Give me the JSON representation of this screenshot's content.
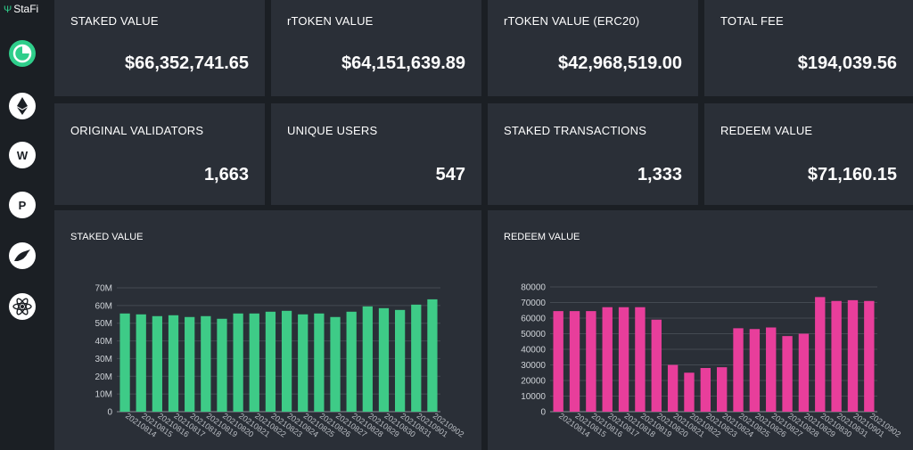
{
  "app": {
    "brand": "StaFi"
  },
  "sidebar": {
    "items": [
      {
        "icon": "pie-chart-icon",
        "active": true
      },
      {
        "icon": "ethereum-icon",
        "active": false
      },
      {
        "icon": "web3-icon",
        "active": false
      },
      {
        "icon": "polkadot-icon",
        "active": false
      },
      {
        "icon": "kusama-icon",
        "active": false
      },
      {
        "icon": "cosmos-icon",
        "active": false
      }
    ]
  },
  "stats": [
    {
      "label": "STAKED VALUE",
      "value": "$66,352,741.65"
    },
    {
      "label": "rTOKEN VALUE",
      "value": "$64,151,639.89"
    },
    {
      "label": "rTOKEN VALUE (ERC20)",
      "value": "$42,968,519.00"
    },
    {
      "label": "TOTAL FEE",
      "value": "$194,039.56"
    },
    {
      "label": "ORIGINAL VALIDATORS",
      "value": "1,663"
    },
    {
      "label": "UNIQUE USERS",
      "value": "547"
    },
    {
      "label": "STAKED TRANSACTIONS",
      "value": "1,333"
    },
    {
      "label": "REDEEM VALUE",
      "value": "$71,160.15"
    }
  ],
  "colors": {
    "staked_bar": "#3ecb87",
    "redeem_bar": "#e83e9b",
    "accent": "#2fce8b"
  },
  "chart_data": [
    {
      "type": "bar",
      "title": "STAKED VALUE",
      "categories": [
        "20210814",
        "20210815",
        "20210816",
        "20210817",
        "20210818",
        "20210819",
        "20210820",
        "20210821",
        "20210822",
        "20210823",
        "20210824",
        "20210825",
        "20210826",
        "20210827",
        "20210828",
        "20210829",
        "20210830",
        "20210831",
        "20210901",
        "20210902"
      ],
      "values": [
        55.5,
        55,
        54,
        54.5,
        53.5,
        54,
        52.5,
        55.5,
        55.5,
        56.5,
        57,
        55,
        55.5,
        53.5,
        56.5,
        59.5,
        58.5,
        57.5,
        60.5,
        63.5
      ],
      "unit": "M",
      "ylim": [
        0,
        70
      ],
      "yticks": [
        "0",
        "10M",
        "20M",
        "30M",
        "40M",
        "50M",
        "60M",
        "70M"
      ]
    },
    {
      "type": "bar",
      "title": "REDEEM VALUE",
      "categories": [
        "20210814",
        "20210815",
        "20210816",
        "20210817",
        "20210818",
        "20210819",
        "20210820",
        "20210821",
        "20210822",
        "20210823",
        "20210824",
        "20210825",
        "20210826",
        "20210827",
        "20210828",
        "20210829",
        "20210830",
        "20210831",
        "20210901",
        "20210902"
      ],
      "values": [
        64500,
        64500,
        64500,
        67000,
        67000,
        67000,
        59000,
        30000,
        25000,
        28000,
        28500,
        53500,
        53000,
        54000,
        48500,
        50000,
        73500,
        71000,
        71500,
        71000
      ],
      "ylim": [
        0,
        80000
      ],
      "yticks": [
        "0",
        "10000",
        "20000",
        "30000",
        "40000",
        "50000",
        "60000",
        "70000",
        "80000"
      ]
    }
  ]
}
